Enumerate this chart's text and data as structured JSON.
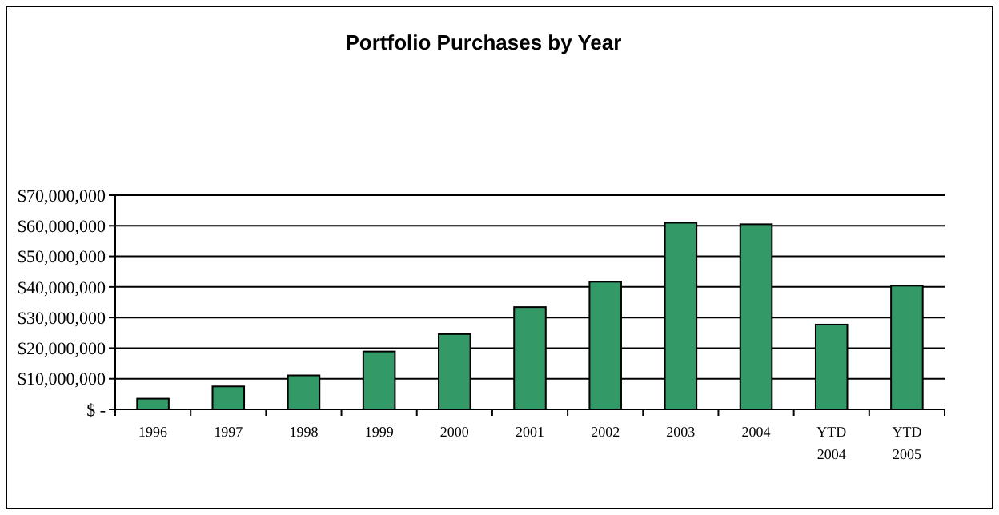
{
  "chart_data": {
    "type": "bar",
    "title": "Portfolio Purchases by Year",
    "categories": [
      "1996",
      "1997",
      "1998",
      "1999",
      "2000",
      "2001",
      "2002",
      "2003",
      "2004",
      "YTD\n2004",
      "YTD\n2005"
    ],
    "values": [
      3500000,
      7500000,
      11100000,
      18900000,
      24600000,
      33400000,
      41700000,
      61000000,
      60500000,
      27700000,
      40400000
    ],
    "color": "#339966",
    "ylim": [
      0,
      70000000
    ],
    "yticks": [
      {
        "value": 0,
        "label": "$ -"
      },
      {
        "value": 10000000,
        "label": "$10,000,000"
      },
      {
        "value": 20000000,
        "label": "$20,000,000"
      },
      {
        "value": 30000000,
        "label": "$30,000,000"
      },
      {
        "value": 40000000,
        "label": "$40,000,000"
      },
      {
        "value": 50000000,
        "label": "$50,000,000"
      },
      {
        "value": 60000000,
        "label": "$60,000,000"
      },
      {
        "value": 70000000,
        "label": "$70,000,000"
      }
    ],
    "grid": "y"
  }
}
